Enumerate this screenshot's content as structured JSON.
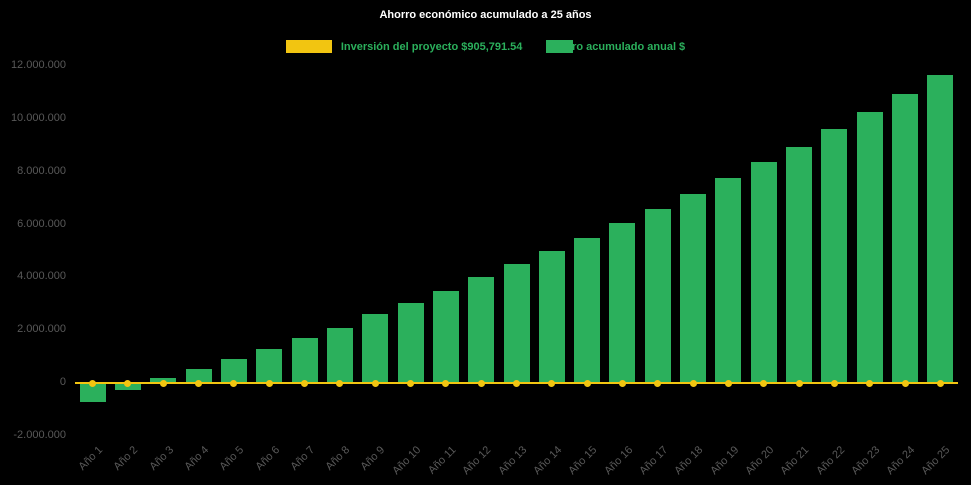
{
  "chart_data": {
    "type": "bar",
    "title": "Ahorro económico acumulado a 25 años",
    "background": "#000000",
    "title_color": "#ffffff",
    "axis_label_color": "#595959",
    "legend_text_color": "#2bb05c",
    "legend_position": "top",
    "grid": false,
    "xlabel": "",
    "ylabel": "",
    "ylim": [
      -2000000,
      12000000
    ],
    "ytick_step": 2000000,
    "ytick_labels": [
      "12.000.000",
      "10.000.000",
      "8.000.000",
      "6.000.000",
      "4.000.000",
      "2.000.000",
      "0",
      "-2.000.000"
    ],
    "categories": [
      "Año 1",
      "Año 2",
      "Año 3",
      "Año 4",
      "Año 5",
      "Año 6",
      "Año 7",
      "Año 8",
      "Año 9",
      "Año 10",
      "Año 11",
      "Año 12",
      "Año 13",
      "Año 14",
      "Año 15",
      "Año 16",
      "Año 17",
      "Año 18",
      "Año 19",
      "Año 20",
      "Año 21",
      "Año 22",
      "Año 23",
      "Año 24",
      "Año 25"
    ],
    "series": [
      {
        "name": "Inversión del proyecto $905,791.54",
        "type": "line",
        "color": "#f2c511",
        "values": [
          0,
          0,
          0,
          0,
          0,
          0,
          0,
          0,
          0,
          0,
          0,
          0,
          0,
          0,
          0,
          0,
          0,
          0,
          0,
          0,
          0,
          0,
          0,
          0,
          0
        ]
      },
      {
        "name": "Ahorro acumulado anual $",
        "type": "bar",
        "color": "#2bb05c",
        "values": [
          -700000,
          -250000,
          200000,
          550000,
          900000,
          1300000,
          1700000,
          2100000,
          2600000,
          3050000,
          3500000,
          4000000,
          4500000,
          5000000,
          5500000,
          6050000,
          6600000,
          7150000,
          7750000,
          8350000,
          8950000,
          9600000,
          10250000,
          10950000,
          11650000
        ]
      }
    ]
  }
}
